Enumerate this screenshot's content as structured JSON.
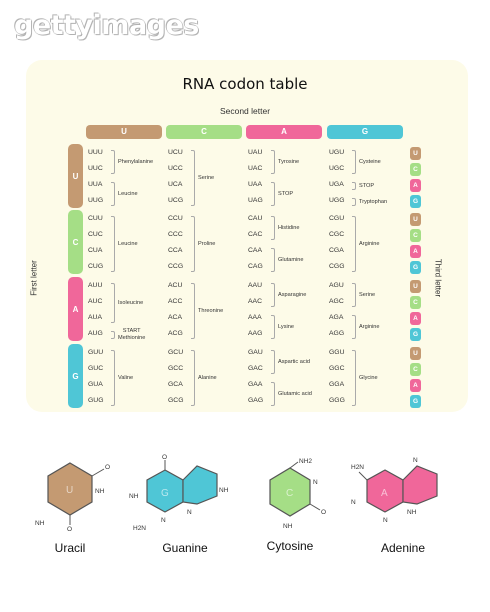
{
  "watermark": "gettyimages",
  "title": "RNA codon table",
  "second_letter_label": "Second letter",
  "first_letter_label": "First letter",
  "third_letter_label": "Third letter",
  "colors": {
    "U": "#c49a72",
    "C": "#a5de86",
    "A": "#f0679a",
    "G": "#4fc6d6"
  },
  "columns": [
    "U",
    "C",
    "A",
    "G"
  ],
  "rows": [
    {
      "letter": "U",
      "blocks": [
        {
          "codons": [
            "UUU",
            "UUC",
            "UUA",
            "UUG"
          ],
          "groups": [
            {
              "label": "Phenylalanine",
              "start": 0,
              "end": 1
            },
            {
              "label": "Leucine",
              "start": 2,
              "end": 3
            }
          ]
        },
        {
          "codons": [
            "UCU",
            "UCC",
            "UCA",
            "UCG"
          ],
          "groups": [
            {
              "label": "Serine",
              "start": 0,
              "end": 3
            }
          ]
        },
        {
          "codons": [
            "UAU",
            "UAC",
            "UAA",
            "UAG"
          ],
          "groups": [
            {
              "label": "Tyrosine",
              "start": 0,
              "end": 1
            },
            {
              "label": "STOP",
              "start": 2,
              "end": 3
            }
          ]
        },
        {
          "codons": [
            "UGU",
            "UGC",
            "UGA",
            "UGG"
          ],
          "groups": [
            {
              "label": "Cysteine",
              "start": 0,
              "end": 1
            },
            {
              "label": "STOP",
              "start": 2,
              "end": 2
            },
            {
              "label": "Tryptophan",
              "start": 3,
              "end": 3
            }
          ]
        }
      ]
    },
    {
      "letter": "C",
      "blocks": [
        {
          "codons": [
            "CUU",
            "CUC",
            "CUA",
            "CUG"
          ],
          "groups": [
            {
              "label": "Leucine",
              "start": 0,
              "end": 3
            }
          ]
        },
        {
          "codons": [
            "CCU",
            "CCC",
            "CCA",
            "CCG"
          ],
          "groups": [
            {
              "label": "Proline",
              "start": 0,
              "end": 3
            }
          ]
        },
        {
          "codons": [
            "CAU",
            "CAC",
            "CAA",
            "CAG"
          ],
          "groups": [
            {
              "label": "Histidine",
              "start": 0,
              "end": 1
            },
            {
              "label": "Glutamine",
              "start": 2,
              "end": 3
            }
          ]
        },
        {
          "codons": [
            "CGU",
            "CGC",
            "CGA",
            "CGG"
          ],
          "groups": [
            {
              "label": "Arginine",
              "start": 0,
              "end": 3
            }
          ]
        }
      ]
    },
    {
      "letter": "A",
      "blocks": [
        {
          "codons": [
            "AUU",
            "AUC",
            "AUA",
            "AUG"
          ],
          "groups": [
            {
              "label": "Isoleucine",
              "start": 0,
              "end": 2
            },
            {
              "label": "START\nMethionine",
              "start": 3,
              "end": 3
            }
          ]
        },
        {
          "codons": [
            "ACU",
            "ACC",
            "ACA",
            "ACG"
          ],
          "groups": [
            {
              "label": "Threonine",
              "start": 0,
              "end": 3
            }
          ]
        },
        {
          "codons": [
            "AAU",
            "AAC",
            "AAA",
            "AAG"
          ],
          "groups": [
            {
              "label": "Asparagine",
              "start": 0,
              "end": 1
            },
            {
              "label": "Lysine",
              "start": 2,
              "end": 3
            }
          ]
        },
        {
          "codons": [
            "AGU",
            "AGC",
            "AGA",
            "AGG"
          ],
          "groups": [
            {
              "label": "Serine",
              "start": 0,
              "end": 1
            },
            {
              "label": "Arginine",
              "start": 2,
              "end": 3
            }
          ]
        }
      ]
    },
    {
      "letter": "G",
      "blocks": [
        {
          "codons": [
            "GUU",
            "GUC",
            "GUA",
            "GUG"
          ],
          "groups": [
            {
              "label": "Valine",
              "start": 0,
              "end": 3
            }
          ]
        },
        {
          "codons": [
            "GCU",
            "GCC",
            "GCA",
            "GCG"
          ],
          "groups": [
            {
              "label": "Alanine",
              "start": 0,
              "end": 3
            }
          ]
        },
        {
          "codons": [
            "GAU",
            "GAC",
            "GAA",
            "GAG"
          ],
          "groups": [
            {
              "label": "Aspartic acid",
              "start": 0,
              "end": 1
            },
            {
              "label": "Glutamic acid",
              "start": 2,
              "end": 3
            }
          ]
        },
        {
          "codons": [
            "GGU",
            "GGC",
            "GGA",
            "GGG"
          ],
          "groups": [
            {
              "label": "Glycine",
              "start": 0,
              "end": 3
            }
          ]
        }
      ]
    }
  ],
  "third_letters": [
    "U",
    "C",
    "A",
    "G"
  ],
  "molecules": [
    {
      "name": "Uracil",
      "letter": "U",
      "atoms": [
        "O",
        "NH",
        "O",
        "NH"
      ]
    },
    {
      "name": "Guanine",
      "letter": "G",
      "atoms": [
        "O",
        "NH",
        "N",
        "H2N",
        "N",
        "NH"
      ]
    },
    {
      "name": "Cytosine",
      "letter": "C",
      "atoms": [
        "NH2",
        "N",
        "O",
        "NH"
      ]
    },
    {
      "name": "Adenine",
      "letter": "A",
      "atoms": [
        "H2N",
        "N",
        "N",
        "N",
        "NH"
      ]
    }
  ]
}
